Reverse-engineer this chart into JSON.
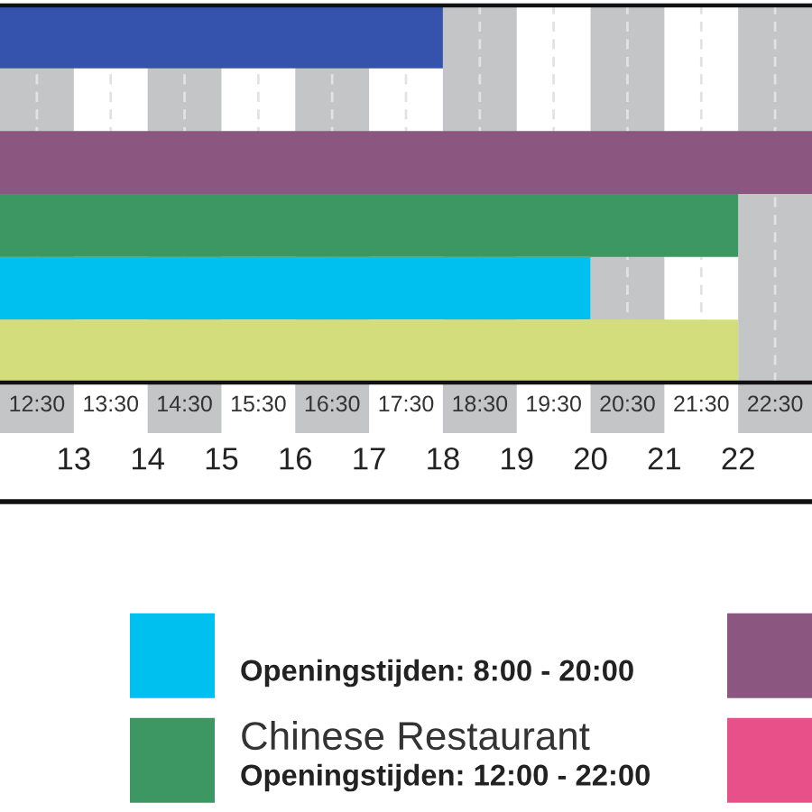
{
  "chart_data": {
    "type": "bar",
    "orientation": "horizontal",
    "categories": [
      null,
      null,
      null,
      null,
      null,
      null
    ],
    "series": [
      {
        "color": "#00c0ef",
        "values": [
          null,
          null,
          null,
          null,
          20,
          null
        ]
      },
      {
        "name": "Chinese Restaurant",
        "color": "#3d9763",
        "values": [
          null,
          null,
          null,
          22,
          null,
          null
        ]
      },
      {
        "color": "#8b5680",
        "values": [
          null,
          null,
          23,
          null,
          null,
          null
        ]
      },
      {
        "color": "#e8508a",
        "values": [
          null,
          null,
          null,
          null,
          null,
          null
        ]
      },
      {
        "color": "#3553ad",
        "values": [
          18,
          null,
          null,
          null,
          null,
          null
        ]
      },
      {
        "color": "#d4dd7b",
        "values": [
          null,
          null,
          null,
          null,
          null,
          22
        ]
      }
    ],
    "xlim": [
      12,
      23
    ],
    "xticks": [
      {
        "value": 12.5,
        "label": "12:30"
      },
      {
        "value": 13.5,
        "label": "13:30"
      },
      {
        "value": 14.5,
        "label": "14:30"
      },
      {
        "value": 15.5,
        "label": "15:30"
      },
      {
        "value": 16.5,
        "label": "16:30"
      },
      {
        "value": 17.5,
        "label": "17:30"
      },
      {
        "value": 18.5,
        "label": "18:30"
      },
      {
        "value": 19.5,
        "label": "19:30"
      },
      {
        "value": 20.5,
        "label": "20:30"
      },
      {
        "value": 21.5,
        "label": "21:30"
      },
      {
        "value": 22.5,
        "label": "22:30"
      }
    ],
    "x2lim": [
      12,
      23
    ],
    "x2ticks": [
      13,
      14,
      15,
      16,
      17,
      18,
      19,
      20,
      21,
      22
    ],
    "bands": [
      {
        "axis": "x",
        "from": 12,
        "to": 13,
        "color": "#c4c5c7"
      },
      {
        "axis": "x",
        "from": 14,
        "to": 15,
        "color": "#c4c5c7"
      },
      {
        "axis": "x",
        "from": 16,
        "to": 17,
        "color": "#c4c5c7"
      },
      {
        "axis": "x",
        "from": 18,
        "to": 19,
        "color": "#c4c5c7"
      },
      {
        "axis": "x",
        "from": 20,
        "to": 21,
        "color": "#c4c5c7"
      },
      {
        "axis": "x",
        "from": 22,
        "to": 23,
        "color": "#c4c5c7"
      }
    ],
    "grid": "x",
    "legend": "bottom",
    "tick_labels": "x",
    "annotations": [
      "Openingstijden: 8:00 - 20:00",
      "Openingstijden: 12:00 - 22:00"
    ]
  }
}
